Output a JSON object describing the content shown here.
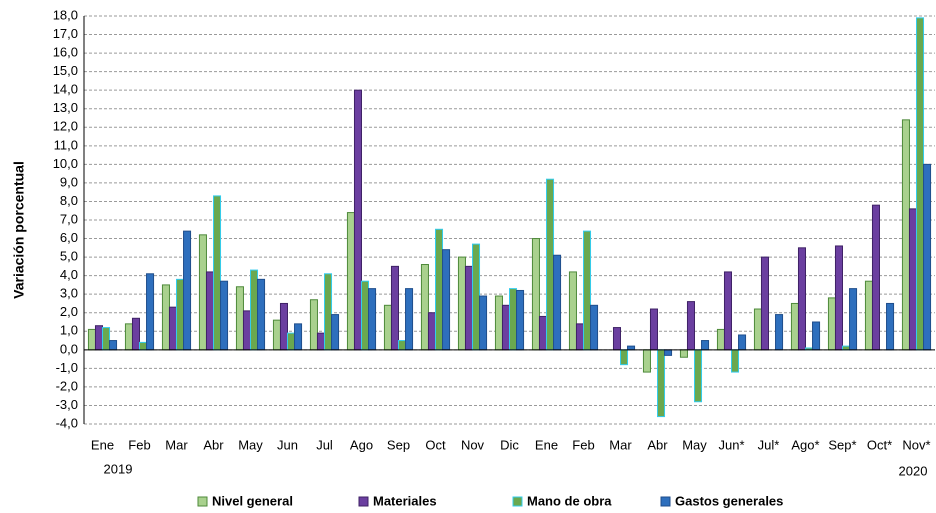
{
  "chart_data": {
    "type": "bar",
    "y_label": "Variación  porcentual",
    "categories": [
      "Ene",
      "Feb",
      "Mar",
      "Abr",
      "May",
      "Jun",
      "Jul",
      "Ago",
      "Sep",
      "Oct",
      "Nov",
      "Dic",
      "Ene",
      "Feb",
      "Mar",
      "Abr",
      "May",
      "Jun*",
      "Jul*",
      "Ago*",
      "Sep*",
      "Oct*",
      "Nov*"
    ],
    "annotations": [
      "2019",
      "2020"
    ],
    "series": [
      {
        "name": "Nivel general",
        "color": "#a9d18e",
        "border": "#4e8a3a",
        "values": [
          1.1,
          1.4,
          3.5,
          6.2,
          3.4,
          1.6,
          2.7,
          7.4,
          2.4,
          4.6,
          5.0,
          2.9,
          6.0,
          4.2,
          0.0,
          -1.2,
          -0.4,
          1.1,
          2.2,
          2.5,
          2.8,
          3.7,
          12.4
        ]
      },
      {
        "name": "Materiales",
        "color": "#6b3fa0",
        "border": "#3f2266",
        "values": [
          1.3,
          1.7,
          2.3,
          4.2,
          2.1,
          2.5,
          0.9,
          14.0,
          4.5,
          2.0,
          4.5,
          2.4,
          1.8,
          1.4,
          1.2,
          2.2,
          2.6,
          4.2,
          5.0,
          5.5,
          5.6,
          7.8,
          7.6
        ]
      },
      {
        "name": "Mano de obra",
        "color": "#6aa84f",
        "border": "#33ccee",
        "values": [
          1.2,
          0.4,
          3.8,
          8.3,
          4.3,
          0.9,
          4.1,
          3.7,
          0.5,
          6.5,
          5.7,
          3.3,
          9.2,
          6.4,
          -0.8,
          -3.6,
          -2.8,
          -1.2,
          0.0,
          0.1,
          0.2,
          0.0,
          17.9
        ]
      },
      {
        "name": "Gastos generales",
        "color": "#2e6fbd",
        "border": "#1f4e8c",
        "values": [
          0.5,
          4.1,
          6.4,
          3.7,
          3.8,
          1.4,
          1.9,
          3.3,
          3.3,
          5.4,
          2.9,
          3.2,
          5.1,
          2.4,
          0.2,
          -0.3,
          0.5,
          0.8,
          1.9,
          1.5,
          3.3,
          2.5,
          10.0
        ]
      }
    ],
    "ylim": [
      -4,
      18
    ],
    "yticks": [
      {
        "value": -4,
        "label": "-4,0"
      },
      {
        "value": -3,
        "label": "-3,0"
      },
      {
        "value": -2,
        "label": "-2,0"
      },
      {
        "value": -1,
        "label": "-1,0"
      },
      {
        "value": 0,
        "label": "0,0"
      },
      {
        "value": 1,
        "label": "1,0"
      },
      {
        "value": 2,
        "label": "2,0"
      },
      {
        "value": 3,
        "label": "3,0"
      },
      {
        "value": 4,
        "label": "4,0"
      },
      {
        "value": 5,
        "label": "5,0"
      },
      {
        "value": 6,
        "label": "6,0"
      },
      {
        "value": 7,
        "label": "7,0"
      },
      {
        "value": 8,
        "label": "8,0"
      },
      {
        "value": 9,
        "label": "9,0"
      },
      {
        "value": 10,
        "label": "10,0"
      },
      {
        "value": 11,
        "label": "11,0"
      },
      {
        "value": 12,
        "label": "12,0"
      },
      {
        "value": 13,
        "label": "13,0"
      },
      {
        "value": 14,
        "label": "14,0"
      },
      {
        "value": 15,
        "label": "15,0"
      },
      {
        "value": 16,
        "label": "16,0"
      },
      {
        "value": 17,
        "label": "17,0"
      },
      {
        "value": 18,
        "label": "18,0"
      }
    ],
    "grid": true
  }
}
